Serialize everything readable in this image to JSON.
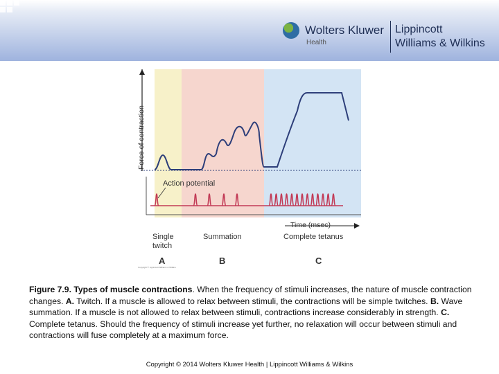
{
  "header": {
    "publisher": "Wolters Kluwer",
    "publisher_sub": "Health",
    "imprint_line1": "Lippincott",
    "imprint_line2": "Williams & Wilkins"
  },
  "figure": {
    "y_axis_label": "Force of contraction",
    "x_axis_label": "Time (msec)",
    "action_potential_label": "Action potential",
    "regions": [
      {
        "name_line1": "Single",
        "name_line2": "twitch",
        "letter": "A",
        "color": "#f7f1c9"
      },
      {
        "name_line1": "Summation",
        "name_line2": "",
        "letter": "B",
        "color": "#f6d6ce"
      },
      {
        "name_line1": "Complete tetanus",
        "name_line2": "",
        "letter": "C",
        "color": "#d3e4f4"
      }
    ],
    "curve_color": "#2e3f7a",
    "spike_color": "#c23a56",
    "fine_print": "Copyright © Lippincott Williams & Wilkins"
  },
  "caption": {
    "title": "Figure 7.9. Types of muscle contractions",
    "text": ". When the frequency of stimuli increases, the nature of muscle contraction changes. ",
    "a_label": "A.",
    "a_text": " Twitch. If a muscle is allowed to relax between stimuli, the contractions will be simple twitches. ",
    "b_label": "B.",
    "b_text": " Wave summation. If a muscle is not allowed to relax between stimuli, contractions increase considerably in strength. ",
    "c_label": "C.",
    "c_text": " Complete tetanus. Should the frequency of stimuli increase yet further, no relaxation will occur between stimuli and contractions will fuse completely at a maximum force."
  },
  "footer": "Copyright © 2014 Wolters Kluwer Health | Lippincott Williams & Wilkins"
}
